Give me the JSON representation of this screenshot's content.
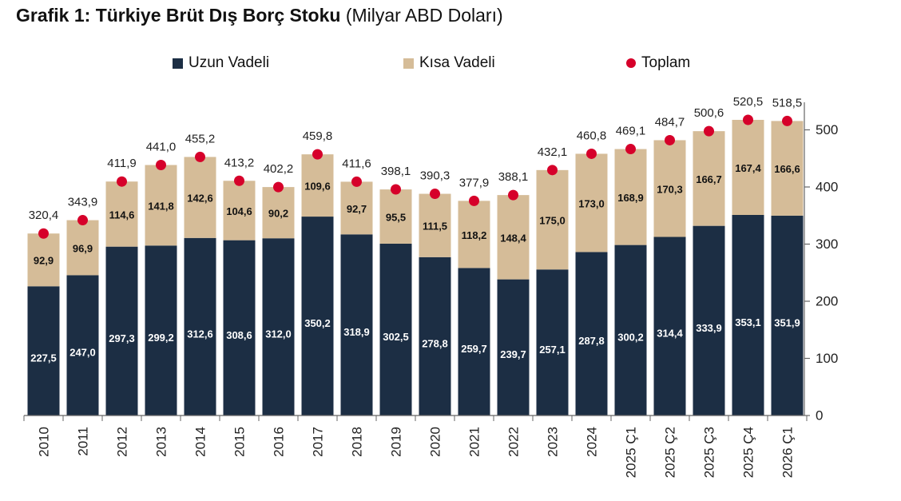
{
  "header": {
    "title_bold": "Grafik 1: Türkiye Brüt Dış Borç Stoku",
    "title_regular": "(Milyar ABD Doları)"
  },
  "legend": {
    "items": [
      {
        "label": "Uzun Vadeli",
        "color": "#1c2e44",
        "shape": "square"
      },
      {
        "label": "Kısa Vadeli",
        "color": "#d5bc98",
        "shape": "square"
      },
      {
        "label": "Toplam",
        "color": "#d6002a",
        "shape": "circle"
      }
    ]
  },
  "chart_data": {
    "type": "bar",
    "stacked": true,
    "categories": [
      "2010",
      "2011",
      "2012",
      "2013",
      "2014",
      "2015",
      "2016",
      "2017",
      "2018",
      "2019",
      "2020",
      "2021",
      "2022",
      "2023",
      "2024",
      "2025 Ç1",
      "2025 Ç2",
      "2025 Ç3",
      "2025 Ç4",
      "2026 Ç1"
    ],
    "series": [
      {
        "name": "Uzun Vadeli",
        "color": "#1c2e44",
        "label_color": "#ffffff",
        "values": [
          227.5,
          247.0,
          297.3,
          299.2,
          312.6,
          308.6,
          312.0,
          350.2,
          318.9,
          302.5,
          278.8,
          259.7,
          239.7,
          257.1,
          287.8,
          300.2,
          314.4,
          333.9,
          353.1,
          351.9
        ],
        "labels": [
          "227,5",
          "247,0",
          "297,3",
          "299,2",
          "312,6",
          "308,6",
          "312,0",
          "350,2",
          "318,9",
          "302,5",
          "278,8",
          "259,7",
          "239,7",
          "257,1",
          "287,8",
          "300,2",
          "314,4",
          "333,9",
          "353,1",
          "351,9"
        ]
      },
      {
        "name": "Kısa Vadeli",
        "color": "#d5bc98",
        "label_color": "#111111",
        "values": [
          92.9,
          96.9,
          114.6,
          141.8,
          142.6,
          104.6,
          90.2,
          109.6,
          92.7,
          95.5,
          111.5,
          118.2,
          148.4,
          175.0,
          173.0,
          168.9,
          170.3,
          166.7,
          167.4,
          166.6
        ],
        "labels": [
          "92,9",
          "96,9",
          "114,6",
          "141,8",
          "142,6",
          "104,6",
          "90,2",
          "109,6",
          "92,7",
          "95,5",
          "111,5",
          "118,2",
          "148,4",
          "175,0",
          "173,0",
          "168,9",
          "170,3",
          "166,7",
          "167,4",
          "166,6"
        ]
      }
    ],
    "totals": {
      "name": "Toplam",
      "color": "#d6002a",
      "values": [
        320.4,
        343.9,
        411.9,
        441.0,
        455.2,
        413.2,
        402.2,
        459.8,
        411.6,
        398.1,
        390.3,
        377.9,
        388.1,
        432.1,
        460.8,
        469.1,
        484.7,
        500.6,
        520.5,
        518.5
      ],
      "labels": [
        "320,4",
        "343,9",
        "411,9",
        "441,0",
        "455,2",
        "413,2",
        "402,2",
        "459,8",
        "411,6",
        "398,1",
        "390,3",
        "377,9",
        "388,1",
        "432,1",
        "460,8",
        "469,1",
        "484,7",
        "500,6",
        "520,5",
        "518,5"
      ]
    },
    "y_axis": {
      "position": "right",
      "ylim": [
        0,
        520.5
      ],
      "ticks": [
        "0",
        "100",
        "200",
        "300",
        "400",
        "500"
      ]
    },
    "grid": false
  }
}
